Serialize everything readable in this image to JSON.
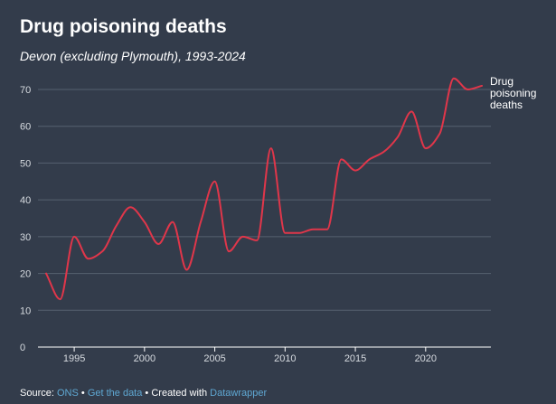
{
  "header": {
    "title": "Drug poisoning deaths",
    "subtitle": "Devon (excluding Plymouth), 1993-2024"
  },
  "chart_data": {
    "type": "line",
    "title": "Drug poisoning deaths",
    "subtitle": "Devon (excluding Plymouth), 1993-2024",
    "xlabel": "",
    "ylabel": "",
    "xlim": [
      1993,
      2024
    ],
    "ylim": [
      0,
      70
    ],
    "grid": true,
    "x_ticks": [
      1995,
      2000,
      2005,
      2010,
      2015,
      2020
    ],
    "y_ticks": [
      0,
      10,
      20,
      30,
      40,
      50,
      60,
      70
    ],
    "series": [
      {
        "name": "Drug poisoning deaths",
        "label_lines": [
          "Drug",
          "poisoning",
          "deaths"
        ],
        "color": "#e0364a",
        "x": [
          1993,
          1994,
          1995,
          1996,
          1997,
          1998,
          1999,
          2000,
          2001,
          2002,
          2003,
          2004,
          2005,
          2006,
          2007,
          2008,
          2009,
          2010,
          2011,
          2012,
          2013,
          2014,
          2015,
          2016,
          2017,
          2018,
          2019,
          2020,
          2021,
          2022,
          2023,
          2024
        ],
        "values": [
          20,
          13,
          30,
          24,
          26,
          33,
          38,
          34,
          28,
          34,
          21,
          34,
          45,
          26,
          30,
          29,
          54,
          31,
          31,
          32,
          32,
          51,
          48,
          51,
          53,
          57,
          64,
          54,
          58,
          73,
          70,
          71
        ]
      }
    ]
  },
  "footer": {
    "source_label": "Source:",
    "source_link": "ONS",
    "separator": "•",
    "data_link": "Get the data",
    "created_with": "Created with",
    "tool_link": "Datawrapper"
  }
}
